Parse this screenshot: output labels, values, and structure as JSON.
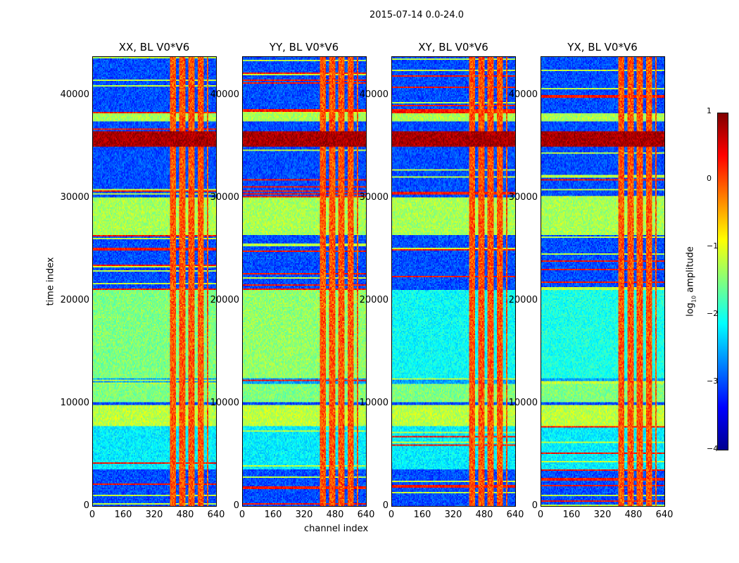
{
  "chart_data": {
    "type": "heatmap",
    "suptitle": "2015-07-14 0.0-24.0",
    "xlabel": "channel index",
    "ylabel": "time index",
    "xlim": [
      0,
      640
    ],
    "ylim": [
      0,
      43800
    ],
    "xticks": [
      "0",
      "160",
      "320",
      "480",
      "640"
    ],
    "yticks": [
      "0",
      "10000",
      "20000",
      "30000",
      "40000"
    ],
    "panels": [
      {
        "title": "XX, BL V0*V6",
        "mid_level": -1.5
      },
      {
        "title": "YY, BL V0*V6",
        "mid_level": -1.4
      },
      {
        "title": "XY, BL V0*V6",
        "mid_level": -2.1
      },
      {
        "title": "YX, BL V0*V6",
        "mid_level": -2.0
      }
    ],
    "time_bands": [
      [
        0,
        3500,
        -3
      ],
      [
        3500,
        7800,
        -2.2
      ],
      [
        7800,
        9800,
        -1.2
      ],
      [
        9800,
        10100,
        -3
      ],
      [
        10100,
        11800,
        -1.5
      ],
      [
        11800,
        12400,
        -2.6
      ],
      [
        12400,
        21000,
        null
      ],
      [
        21000,
        26300,
        -3
      ],
      [
        26300,
        30000,
        -1.3
      ],
      [
        30000,
        35000,
        -3
      ],
      [
        35000,
        36500,
        0.8
      ],
      [
        36500,
        37500,
        -3
      ],
      [
        37500,
        38300,
        -1.3
      ],
      [
        38300,
        43800,
        -3
      ]
    ],
    "rfi_channel_range": [
      400,
      600
    ],
    "rfi_level": -0.2,
    "colorbar": {
      "label": "log10 amplitude",
      "range": [
        -4,
        1
      ],
      "ticks": [
        "1",
        "0",
        "−1",
        "−2",
        "−3",
        "−4"
      ],
      "colormap": "jet"
    }
  }
}
